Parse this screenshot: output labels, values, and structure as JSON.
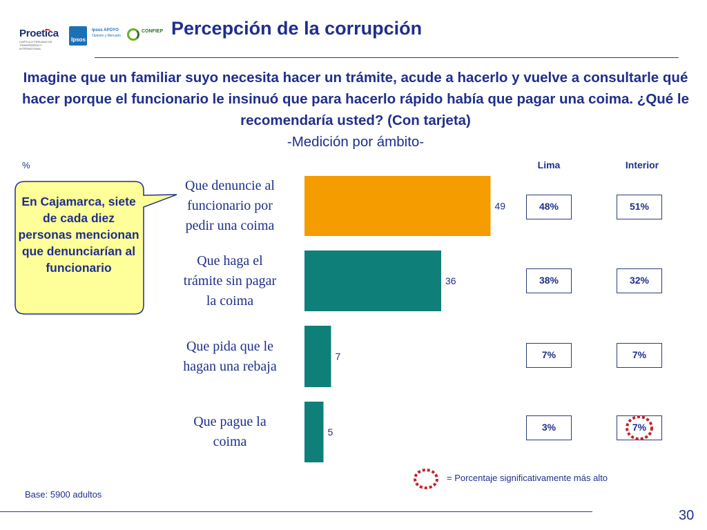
{
  "logos": {
    "proetica": "Proetica",
    "proetica_sub": "CAPÍTULO PERUANO DE TRANSPARENCY INTERNATIONAL",
    "ipsos": "Ipsos",
    "ipsos_name": "Ipsos APOYO",
    "ipsos_sub": "Opinión y Mercado",
    "confiep": "CONFIEP"
  },
  "title": "Percepción de la corrupción",
  "question": "Imagine que un familiar suyo necesita hacer un trámite, acude a hacerlo y vuelve a consultarle qué hacer porque el funcionario le insinuó que para hacerlo rápido había que pagar una coima. ¿Qué le recomendaría usted? (Con tarjeta)",
  "question_sub": "-Medición por ámbito-",
  "percent_sign": "%",
  "callout": "En Cajamarca, siete de cada diez personas mencionan que denunciarían al funcionario",
  "legend_text": "= Porcentaje significativamente más alto",
  "base": "Base: 5900 adultos",
  "page_number": "30",
  "colors": {
    "primary_text": "#1f2f8a",
    "bar_top": "#f59c00",
    "bar_other": "#0f7f79",
    "callout_fill": "#ffff99",
    "highlight_ring": "#c0272d"
  },
  "chart_data": {
    "type": "bar",
    "orientation": "horizontal",
    "categories": [
      "Que denuncie al funcionario por pedir una coima",
      "Que haga el trámite sin pagar la coima",
      "Que pida que le hagan una rebaja",
      "Que pague la coima"
    ],
    "category_lines": [
      [
        "Que denuncie al",
        "funcionario por",
        "pedir una coima"
      ],
      [
        "Que haga el",
        "trámite sin pagar",
        "la coima"
      ],
      [
        "Que pida que le",
        "hagan una rebaja"
      ],
      [
        "Que pague la",
        "coima"
      ]
    ],
    "values": [
      49,
      36,
      7,
      5
    ],
    "value_labels": [
      "49",
      "36",
      "7",
      "5"
    ],
    "ylabel": "%",
    "xlim": [
      0,
      100
    ],
    "grid": false,
    "table_columns": [
      "Lima",
      "Interior"
    ],
    "table": [
      [
        "48%",
        "51%"
      ],
      [
        "38%",
        "32%"
      ],
      [
        "7%",
        "7%"
      ],
      [
        "3%",
        "7%"
      ]
    ],
    "highlighted": [
      [
        3,
        1
      ]
    ]
  }
}
